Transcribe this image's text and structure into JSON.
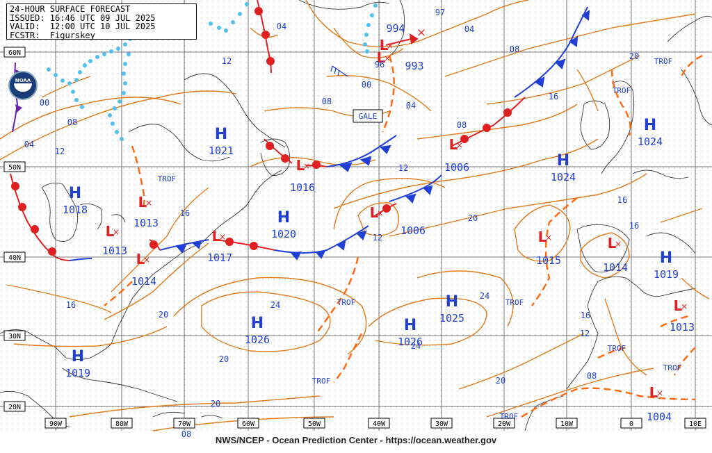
{
  "header": {
    "line1": "24-HOUR SURFACE FORECAST",
    "line2": "ISSUED: 16:46 UTC 09 JUL 2025",
    "line3": "VALID:  12:00 UTC 10 JUL 2025",
    "line4": "FCSTR:  Figurskey"
  },
  "footer": "NWS/NCEP - Ocean Prediction Center - https://ocean.weather.gov",
  "logo": "NOAA",
  "colors": {
    "isobar": "#e07a1a",
    "high": "#1f3fd6",
    "low": "#e02020",
    "cold_front": "#1f3fd6",
    "warm_front": "#e02020",
    "trough": "#ff6a13",
    "ice": "#4fc0f0",
    "coast": "#333333",
    "grid": "#777777"
  },
  "lat_labels": [
    "60N",
    "50N",
    "40N",
    "30N",
    "20N"
  ],
  "lon_labels": [
    "90W",
    "80W",
    "70W",
    "60W",
    "50W",
    "40W",
    "30W",
    "20W",
    "10W",
    "0",
    "10E"
  ],
  "highs": [
    {
      "pressure": "1021"
    },
    {
      "pressure": "1018"
    },
    {
      "pressure": "1020"
    },
    {
      "pressure": "1026"
    },
    {
      "pressure": "1026"
    },
    {
      "pressure": "1025"
    },
    {
      "pressure": "1024"
    },
    {
      "pressure": "1024"
    },
    {
      "pressure": "1019"
    },
    {
      "pressure": "1019"
    }
  ],
  "lows": [
    {
      "pressure": "994"
    },
    {
      "pressure": "993"
    },
    {
      "pressure": "1016"
    },
    {
      "pressure": "1006"
    },
    {
      "pressure": "1006"
    },
    {
      "pressure": "1013"
    },
    {
      "pressure": "1013"
    },
    {
      "pressure": "1014"
    },
    {
      "pressure": "1017"
    },
    {
      "pressure": "1015"
    },
    {
      "pressure": "1014"
    },
    {
      "pressure": "1013"
    },
    {
      "pressure": "1004"
    }
  ],
  "isobar_labels": [
    "04",
    "12",
    "00",
    "08",
    "04",
    "12",
    "08",
    "12",
    "16",
    "20",
    "20",
    "24",
    "24",
    "24",
    "20",
    "16",
    "20",
    "16",
    "12",
    "16",
    "08",
    "00",
    "96",
    "08",
    "04",
    "08",
    "20",
    "16",
    "16",
    "12",
    "20",
    "97",
    "04",
    "08"
  ],
  "trof_labels": [
    "TROF",
    "TROF",
    "TROF",
    "TROF",
    "TROF",
    "TROF",
    "TROF",
    "TROF",
    "TROF"
  ],
  "gale_label": "GALE",
  "high_symbol": "H",
  "low_symbol": "L"
}
